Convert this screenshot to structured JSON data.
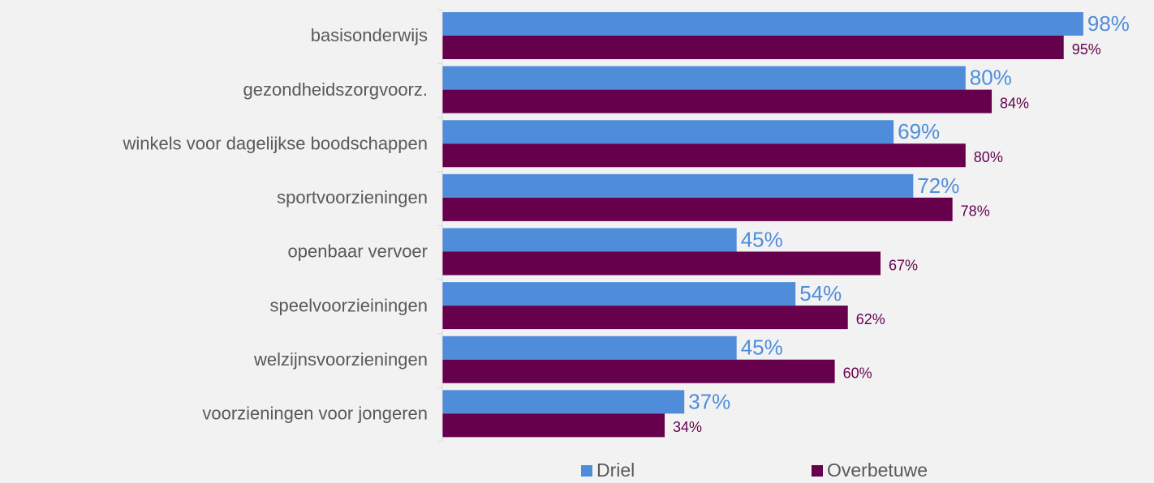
{
  "chart_data": {
    "type": "bar",
    "orientation": "horizontal",
    "categories": [
      "basisonderwijs",
      "gezondheidszorgvoorz.",
      "winkels voor dagelijkse boodschappen",
      "sportvoorzieningen",
      "openbaar vervoer",
      "speelvoorzieiningen",
      "welzijnsvoorzieningen",
      "voorzieningen voor jongeren"
    ],
    "series": [
      {
        "name": "Driel",
        "color": "#4f8ddb",
        "values": [
          98,
          80,
          69,
          72,
          45,
          54,
          45,
          37
        ],
        "value_labels": [
          "98%",
          "80%",
          "69%",
          "72%",
          "45%",
          "54%",
          "45%",
          "37%"
        ]
      },
      {
        "name": "Overbetuwe",
        "color": "#66004d",
        "values": [
          95,
          84,
          80,
          78,
          67,
          62,
          60,
          34
        ],
        "value_labels": [
          "95%",
          "84%",
          "80%",
          "78%",
          "67%",
          "62%",
          "60%",
          "34%"
        ]
      }
    ],
    "xlim": [
      0,
      100
    ],
    "legend": "bottom"
  }
}
